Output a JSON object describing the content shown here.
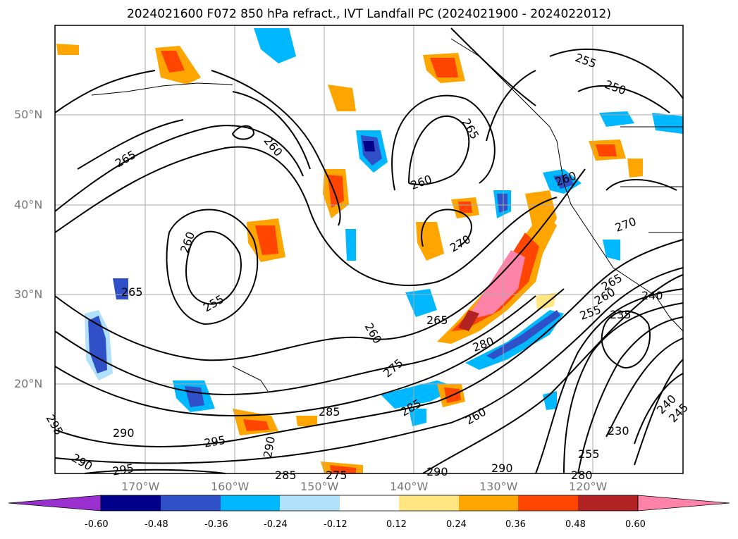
{
  "title": "2024021600 F072 850 hPa refract., IVT Landfall PC (2024021900 - 2024022012)",
  "map": {
    "lat_labels": [
      "50°N",
      "40°N",
      "30°N",
      "20°N"
    ],
    "lon_labels": [
      "170°W",
      "160°W",
      "150°W",
      "140°W",
      "130°W",
      "120°W"
    ],
    "contour_labels": [
      "255",
      "250",
      "265",
      "260",
      "260",
      "255",
      "265",
      "260",
      "260",
      "270",
      "265",
      "260",
      "255",
      "265",
      "270",
      "280",
      "275",
      "285",
      "285",
      "260",
      "290",
      "295",
      "290",
      "295",
      "285",
      "275",
      "290",
      "290",
      "280",
      "240",
      "235",
      "255",
      "230",
      "240",
      "245",
      "295",
      "290",
      "265",
      "260"
    ]
  },
  "colorbar": {
    "ticks": [
      "-0.60",
      "-0.48",
      "-0.36",
      "-0.24",
      "-0.12",
      "0.12",
      "0.24",
      "0.36",
      "0.48",
      "0.60"
    ],
    "colors": [
      "#9b30d0",
      "#00008b",
      "#3050c8",
      "#00b8ff",
      "#b0e0fa",
      "#ffffff",
      "#ffe680",
      "#ffa500",
      "#ff4500",
      "#b22222",
      "#ff82a8"
    ]
  }
}
